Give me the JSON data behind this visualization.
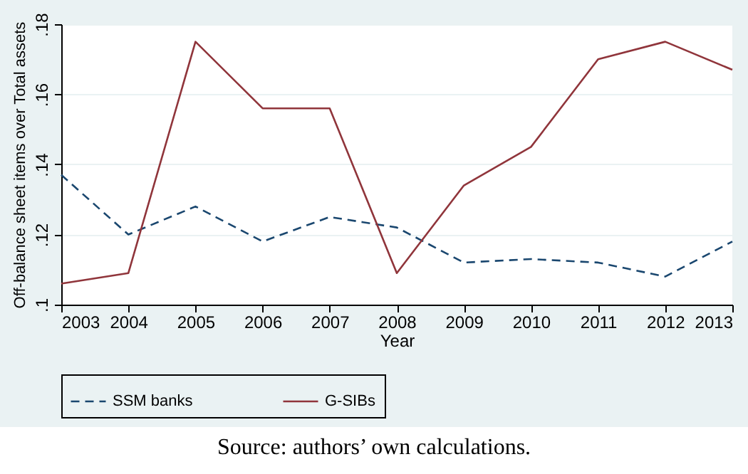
{
  "chart_data": {
    "type": "line",
    "xlabel": "Year",
    "ylabel": "Off-balance sheet items over Total assets",
    "x": [
      2003,
      2004,
      2005,
      2006,
      2007,
      2008,
      2009,
      2010,
      2011,
      2012,
      2013
    ],
    "series": [
      {
        "name": "SSM banks",
        "color": "#1a476f",
        "line_style": "dashed",
        "values": [
          0.137,
          0.12,
          0.128,
          0.118,
          0.125,
          0.122,
          0.112,
          0.113,
          0.112,
          0.108,
          0.118
        ]
      },
      {
        "name": "G-SIBs",
        "color": "#90353b",
        "line_style": "solid",
        "values": [
          0.106,
          0.109,
          0.175,
          0.156,
          0.156,
          0.109,
          0.134,
          0.145,
          0.17,
          0.175,
          0.167
        ]
      }
    ],
    "xlim": [
      2003,
      2013
    ],
    "xticks": [
      2003,
      2004,
      2005,
      2006,
      2007,
      2008,
      2009,
      2010,
      2011,
      2012,
      2013
    ],
    "ylim": [
      0.1,
      0.18
    ],
    "yticks": [
      {
        "value": 0.1,
        "label": ".1"
      },
      {
        "value": 0.12,
        "label": ".12"
      },
      {
        "value": 0.14,
        "label": ".14"
      },
      {
        "value": 0.16,
        "label": ".16"
      },
      {
        "value": 0.18,
        "label": ".18"
      }
    ],
    "grid": "y",
    "legend": "bottom",
    "marker": "none",
    "annotations": [
      "Source: authors’ own calculations."
    ]
  }
}
